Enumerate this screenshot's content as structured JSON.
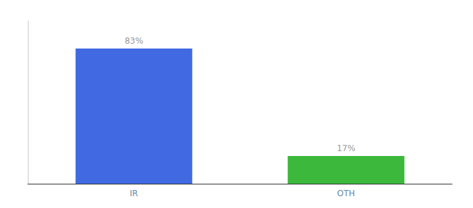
{
  "chart_data": {
    "type": "bar",
    "categories": [
      "IR",
      "OTH"
    ],
    "values": [
      83,
      17
    ],
    "value_labels": [
      "83%",
      "17%"
    ],
    "colors": [
      "#4169e1",
      "#3cb83c"
    ],
    "data_labels": true,
    "ylim": [
      0,
      100
    ],
    "grid": false,
    "tick_labels": "x"
  }
}
